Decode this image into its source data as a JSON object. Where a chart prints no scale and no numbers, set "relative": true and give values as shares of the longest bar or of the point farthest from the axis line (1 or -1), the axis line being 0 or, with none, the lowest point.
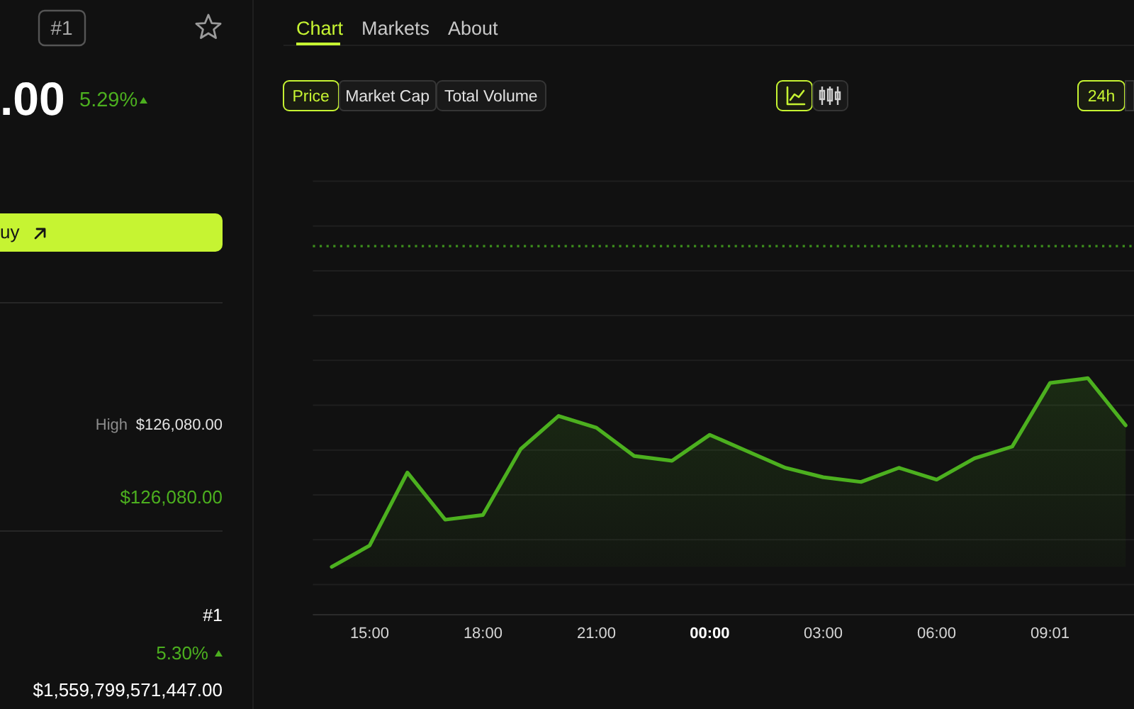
{
  "chart_data": {
    "type": "area",
    "relative": true,
    "color": "#4cb01f",
    "categories": [
      null,
      "15:00",
      null,
      null,
      "18:00",
      null,
      null,
      "21:00",
      null,
      null,
      "00:00",
      null,
      null,
      "03:00",
      null,
      null,
      "06:00",
      null,
      null,
      "09:01",
      null,
      null
    ],
    "values": [
      0.2,
      0.29,
      0.6,
      0.4,
      0.42,
      0.7,
      0.84,
      0.79,
      0.67,
      0.65,
      0.76,
      0.69,
      0.62,
      0.58,
      0.56,
      0.62,
      0.57,
      0.66,
      0.71,
      0.98,
      1,
      0.8
    ],
    "grid": "y",
    "ref_lines": [
      {
        "axis": "y",
        "value": 1.56,
        "color": "#3d8f1c",
        "line_style": "dotted"
      }
    ],
    "annotations": [
      "#1",
      ".00",
      "5.29%",
      "uy",
      "High",
      "$126,080.00",
      "$126,080.00",
      "#1",
      "5.30%",
      "$1,559,799,571,447.00",
      "Chart",
      "Markets",
      "About",
      "Price",
      "Market Cap",
      "Total Volume",
      "24h"
    ]
  }
}
